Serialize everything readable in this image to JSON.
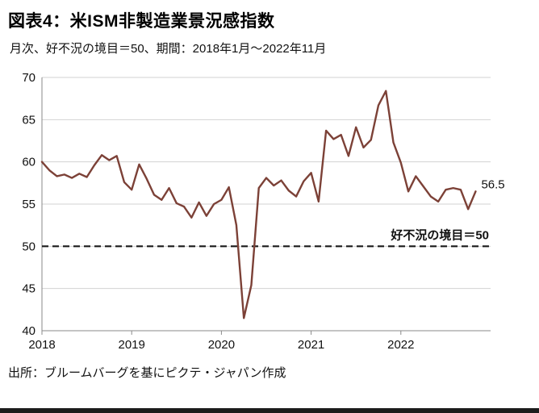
{
  "header": {
    "title": "図表4：米ISM非製造業景況感指数",
    "subtitle": "月次、好不況の境目＝50、期間：2018年1月～2022年11月"
  },
  "chart_data": {
    "type": "line",
    "title": "図表4：米ISM非製造業景況感指数",
    "subtitle": "月次、好不況の境目＝50、期間：2018年1月～2022年11月",
    "x_start": "2018-01",
    "x_end": "2022-11",
    "x_tick_labels": [
      "2018",
      "2019",
      "2020",
      "2021",
      "2022"
    ],
    "values": [
      60.0,
      59.0,
      58.3,
      58.5,
      58.1,
      58.6,
      58.2,
      59.6,
      60.8,
      60.2,
      60.7,
      57.6,
      56.7,
      59.7,
      58.0,
      56.1,
      55.5,
      56.9,
      55.1,
      54.7,
      53.4,
      55.2,
      53.6,
      55.0,
      55.5,
      57.0,
      52.5,
      41.5,
      45.4,
      56.9,
      58.1,
      57.2,
      57.8,
      56.6,
      55.9,
      57.7,
      58.7,
      55.3,
      63.7,
      62.7,
      63.2,
      60.7,
      64.1,
      61.7,
      62.6,
      66.7,
      68.4,
      62.3,
      59.9,
      56.5,
      58.3,
      57.1,
      55.9,
      55.3,
      56.7,
      56.9,
      56.7,
      54.4,
      56.5
    ],
    "ylim": [
      40,
      70
    ],
    "yticks": [
      40,
      45,
      50,
      55,
      60,
      65,
      70
    ],
    "grid": true,
    "legend": "none",
    "threshold": {
      "value": 50,
      "label": "好不況の境目＝50"
    },
    "last_value_label": "56.5",
    "line_color": "#7c4137",
    "grid_color": "#d2d2d2",
    "axis_color": "#8a8a8a",
    "text_color": "#111111"
  },
  "footer": {
    "source": "出所：ブルームバーグを基にピクテ・ジャパン作成"
  }
}
